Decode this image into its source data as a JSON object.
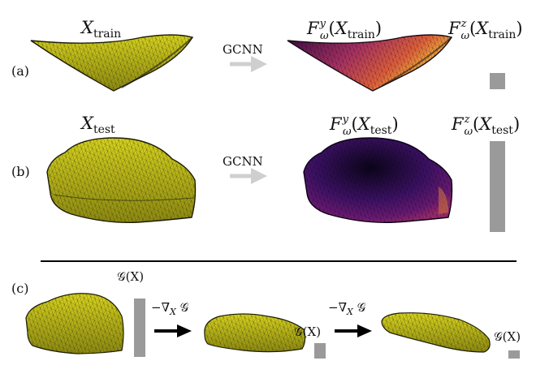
{
  "rows": {
    "a": "(a)",
    "b": "(b)",
    "c": "(c)"
  },
  "labels": {
    "x_train_base": "X",
    "x_train_sub": "train",
    "x_test_base": "X",
    "x_test_sub": "test",
    "f_base": "F",
    "f_sub": "ω",
    "sup_y": "y",
    "sup_z": "z",
    "train": "train",
    "test": "test",
    "gcnn": "GCNN",
    "g_of_x": "𝒢(X)",
    "neg_grad": "−∇",
    "grad_sub": "X",
    "grad_g": "𝒢"
  },
  "bars": {
    "fz_train_value": 0.18,
    "fz_test_value": 1.0,
    "g_initial_value": 0.75,
    "g_step1_value": 0.2,
    "g_step2_value": 0.1
  },
  "colors": {
    "mesh_yellow": "#c9c51a",
    "mesh_line": "#2a2a0a",
    "arrow_gray": "#cfcfcf",
    "arrow_black": "#000000",
    "bar_gray": "#9a9a9a",
    "inferno_dark": "#24063f",
    "inferno_mid": "#a83262",
    "inferno_hot": "#f7a13a"
  }
}
